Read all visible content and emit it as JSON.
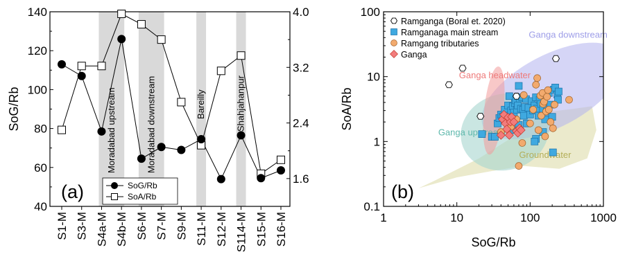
{
  "chart_data": [
    {
      "type": "line",
      "panel_label": "(a)",
      "categories": [
        "S1-M",
        "S3-M",
        "S4a-M",
        "S4b-M",
        "S6-M",
        "S7-M",
        "S9-M",
        "S11-M",
        "S12-M",
        "S114-M",
        "S15-M",
        "S16-M"
      ],
      "ylabel": "SoG/Rb",
      "ylim": [
        40,
        140
      ],
      "yticks": [
        40,
        60,
        80,
        100,
        120,
        140
      ],
      "y2lim": [
        1.2,
        4.0
      ],
      "y2ticks": [
        "1.6",
        "2.4",
        "3.2",
        "4.0"
      ],
      "y2tick_values": [
        1.6,
        2.4,
        3.2,
        4.0
      ],
      "series": [
        {
          "name": "SoG/Rb",
          "axis": "left",
          "marker": "filled-circle",
          "values": [
            113,
            107,
            78.5,
            126,
            64.5,
            70.5,
            69,
            74.5,
            54,
            76.5,
            54.5,
            58.5
          ]
        },
        {
          "name": "SoA/Rb",
          "axis": "right",
          "marker": "open-square",
          "values": [
            2.3,
            3.22,
            3.22,
            3.97,
            3.82,
            3.6,
            2.7,
            2.08,
            3.15,
            3.37,
            1.67,
            1.87
          ]
        }
      ],
      "shaded_bands": [
        {
          "from": "S4a-M",
          "to": "S4b-M",
          "label": "Moradabad upstream"
        },
        {
          "from": "S6-M",
          "to": "S7-M",
          "label": "Moradabad downstream"
        },
        {
          "from": "S11-M",
          "to": "S11-M",
          "label": "Bareilly"
        },
        {
          "from": "S114-M",
          "to": "S114-M",
          "label": "Shahjahanpur"
        }
      ],
      "legend_position": "bottom-left",
      "grid": false
    },
    {
      "type": "scatter",
      "panel_label": "(b)",
      "xlabel": "SoG/Rb",
      "ylabel": "SoA/Rb",
      "xscale": "log",
      "yscale": "log",
      "xlim": [
        1,
        1000
      ],
      "ylim": [
        0.1,
        100
      ],
      "xticks": [
        "1",
        "10",
        "100",
        "1000"
      ],
      "yticks": [
        "0.1",
        "1",
        "10",
        "100"
      ],
      "legend_position": "top-left",
      "grid": false,
      "regions": [
        {
          "label": "Ganga downstream",
          "color": "#b3b3ee",
          "shape": "ellipse",
          "cx": 200,
          "cy": 7,
          "label_at": [
            330,
            40
          ]
        },
        {
          "label": "Ganga headwater",
          "color": "#f29a9a",
          "shape": "ellipse",
          "cx": 32,
          "cy": 3,
          "label_at": [
            33,
            9.5
          ]
        },
        {
          "label": "Ganga upstream",
          "color": "#a6d6cf",
          "shape": "ellipse",
          "cx": 45,
          "cy": 1.3,
          "label_at": [
            16,
            1.25
          ]
        },
        {
          "label": "Groundwater",
          "color": "#dedcaa",
          "shape": "polygon",
          "label_at": [
            160,
            0.56
          ]
        }
      ],
      "series": [
        {
          "name": "Ramganga (Boral et. 2020)",
          "marker": "hexagon",
          "color": "#ffffff",
          "points": [
            [
              7.8,
              7.5
            ],
            [
              12,
              13.5
            ],
            [
              21,
              2.45
            ],
            [
              65,
              5
            ],
            [
              225,
              19
            ]
          ]
        },
        {
          "name": "Ramganaga main stream",
          "marker": "square",
          "color": "#3fa9e0",
          "points": [
            [
              22,
              1.3
            ],
            [
              30,
              1.18
            ],
            [
              33,
              1.18
            ],
            [
              36,
              1.9
            ],
            [
              38,
              2.3
            ],
            [
              40,
              2.6
            ],
            [
              42,
              2.4
            ],
            [
              45,
              3.1
            ],
            [
              47,
              2.5
            ],
            [
              50,
              3.6
            ],
            [
              52,
              5.0
            ],
            [
              55,
              3.0
            ],
            [
              58,
              3.5
            ],
            [
              60,
              2.8
            ],
            [
              62,
              3.9
            ],
            [
              64,
              4.3
            ],
            [
              66,
              3.1
            ],
            [
              68,
              3.6
            ],
            [
              70,
              7.2
            ],
            [
              72,
              4.6
            ],
            [
              75,
              3.2
            ],
            [
              78,
              4.8
            ],
            [
              80,
              3.1
            ],
            [
              82,
              2.5
            ],
            [
              85,
              3.4
            ],
            [
              88,
              4.5
            ],
            [
              90,
              1.9
            ],
            [
              95,
              3.3
            ],
            [
              100,
              2.6
            ],
            [
              105,
              4.2
            ],
            [
              110,
              3.0
            ],
            [
              115,
              3.6
            ],
            [
              120,
              4.8
            ],
            [
              125,
              3.2
            ],
            [
              130,
              2.5
            ],
            [
              135,
              4.4
            ],
            [
              140,
              3.8
            ],
            [
              150,
              3.2
            ],
            [
              160,
              2.2
            ],
            [
              170,
              2.9
            ],
            [
              180,
              5.6
            ],
            [
              190,
              3.7
            ],
            [
              200,
              2.4
            ],
            [
              210,
              6.3
            ],
            [
              220,
              6.8
            ],
            [
              235,
              5.3
            ],
            [
              240,
              4.4
            ],
            [
              245,
              5.9
            ],
            [
              150,
              1.4
            ],
            [
              120,
              1.1
            ],
            [
              115,
              1.0
            ],
            [
              205,
              0.68
            ],
            [
              60,
              1.5
            ],
            [
              70,
              1.8
            ]
          ]
        },
        {
          "name": "Ramgang tributaries",
          "marker": "circle",
          "color": "#f2aa6e",
          "points": [
            [
              40,
              1.4
            ],
            [
              48,
              2.1
            ],
            [
              55,
              1.7
            ],
            [
              65,
              2.2
            ],
            [
              70,
              0.42
            ],
            [
              78,
              0.95
            ],
            [
              82,
              5.2
            ],
            [
              100,
              1.9
            ],
            [
              110,
              3.1
            ],
            [
              120,
              7.5
            ],
            [
              125,
              9.5
            ],
            [
              130,
              1.5
            ],
            [
              138,
              5.1
            ],
            [
              142,
              2.5
            ],
            [
              148,
              5.6
            ],
            [
              150,
              3.8
            ],
            [
              155,
              4.1
            ],
            [
              160,
              1.2
            ],
            [
              165,
              2.9
            ],
            [
              170,
              4.9
            ],
            [
              175,
              6.2
            ],
            [
              180,
              3.1
            ],
            [
              190,
              2.0
            ],
            [
              205,
              1.6
            ],
            [
              215,
              3.7
            ],
            [
              340,
              4.4
            ]
          ]
        },
        {
          "name": "Ganga",
          "marker": "diamond",
          "color": "#f27c7c",
          "points": [
            [
              40,
              1.25
            ],
            [
              42,
              2.2
            ],
            [
              44,
              2.6
            ],
            [
              46,
              1.9
            ],
            [
              48,
              1.55
            ],
            [
              50,
              2.35
            ],
            [
              52,
              1.25
            ],
            [
              54,
              2.0
            ],
            [
              56,
              2.4
            ],
            [
              60,
              2.0
            ],
            [
              65,
              1.45
            ],
            [
              68,
              1.35
            ],
            [
              72,
              1.6
            ],
            [
              75,
              1.5
            ]
          ]
        }
      ]
    }
  ]
}
